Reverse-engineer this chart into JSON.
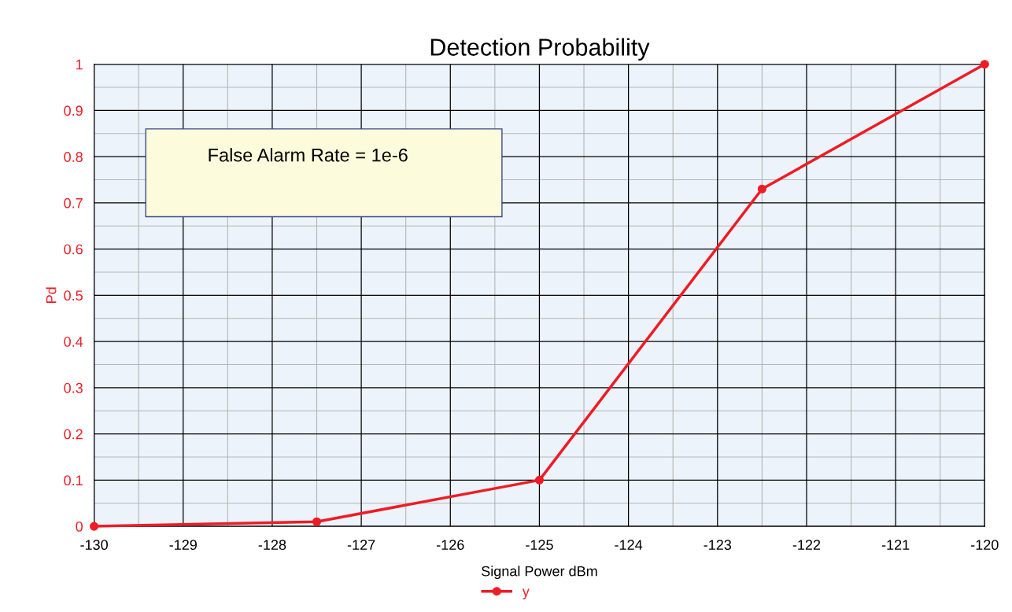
{
  "chart_data": {
    "type": "line",
    "title": "Detection Probability",
    "xlabel": "Signal Power dBm",
    "ylabel": "Pd",
    "x": [
      -130,
      -127.5,
      -125,
      -122.5,
      -120
    ],
    "series": [
      {
        "name": "y",
        "color": "#ee1c25",
        "values": [
          0,
          0.01,
          0.1,
          0.73,
          1
        ]
      }
    ],
    "xlim": [
      -130,
      -120
    ],
    "xticks": [
      -130,
      -129,
      -128,
      -127,
      -126,
      -125,
      -124,
      -123,
      -122,
      -121,
      -120
    ],
    "ylim": [
      0,
      1
    ],
    "yticks": [
      0,
      0.1,
      0.2,
      0.3,
      0.4,
      0.5,
      0.6,
      0.7,
      0.8,
      0.9,
      1
    ],
    "annotations": [
      "False Alarm Rate = 1e-6"
    ],
    "grid": true,
    "legend": "bottom",
    "marker": "circle",
    "line_style": "solid"
  }
}
